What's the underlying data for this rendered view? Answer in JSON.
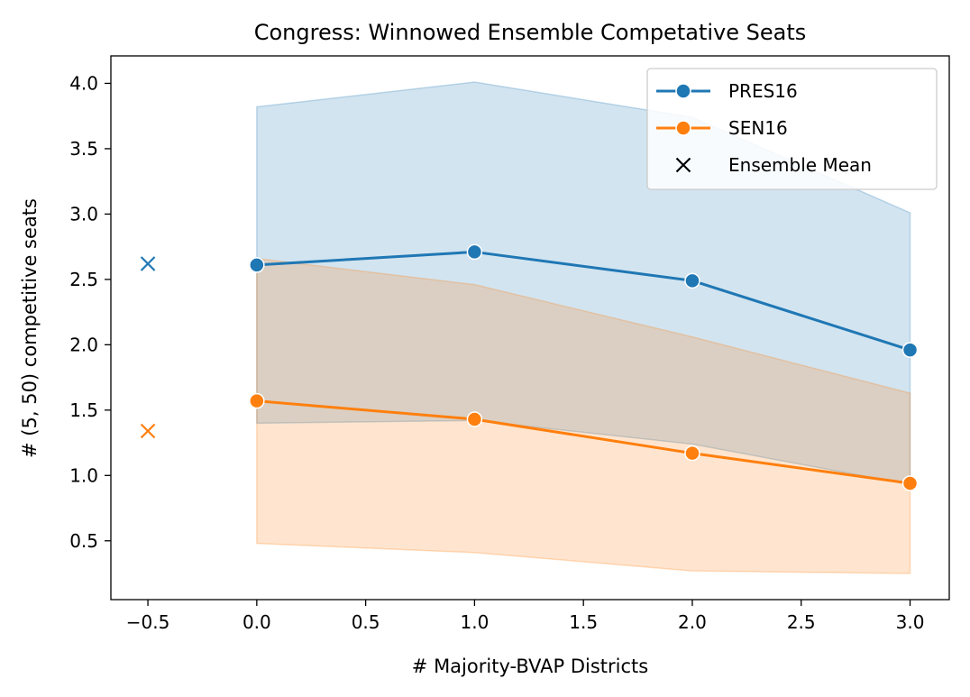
{
  "chart_data": {
    "type": "line",
    "title": "Congress: Winnowed Ensemble Competative Seats",
    "xlabel": "# Majority-BVAP Districts",
    "ylabel": "# (5, 50) competitive seats",
    "xlim": [
      -0.67,
      3.18
    ],
    "ylim": [
      0.05,
      4.21
    ],
    "xticks": [
      -0.5,
      0.0,
      0.5,
      1.0,
      1.5,
      2.0,
      2.5,
      3.0
    ],
    "xtick_labels": [
      "−0.5",
      "0.0",
      "0.5",
      "1.0",
      "1.5",
      "2.0",
      "2.5",
      "3.0"
    ],
    "yticks": [
      0.5,
      1.0,
      1.5,
      2.0,
      2.5,
      3.0,
      3.5,
      4.0
    ],
    "ytick_labels": [
      "0.5",
      "1.0",
      "1.5",
      "2.0",
      "2.5",
      "3.0",
      "3.5",
      "4.0"
    ],
    "grid": false,
    "legend_position": "top-right",
    "series": [
      {
        "name": "PRES16",
        "color": "#1f77b4",
        "x": [
          0,
          1,
          2,
          3
        ],
        "values": [
          2.61,
          2.71,
          2.49,
          1.96
        ],
        "band_upper": [
          3.82,
          4.01,
          3.74,
          3.01
        ],
        "band_lower": [
          1.4,
          1.42,
          1.24,
          0.93
        ],
        "ensemble_mean": {
          "x": -0.5,
          "y": 2.62
        }
      },
      {
        "name": "SEN16",
        "color": "#ff7f0e",
        "x": [
          0,
          1,
          2,
          3
        ],
        "values": [
          1.57,
          1.43,
          1.17,
          0.94
        ],
        "band_upper": [
          2.66,
          2.46,
          2.06,
          1.63
        ],
        "band_lower": [
          0.48,
          0.41,
          0.27,
          0.25
        ],
        "ensemble_mean": {
          "x": -0.5,
          "y": 1.34
        }
      }
    ],
    "legend": [
      {
        "label": "PRES16",
        "marker": "line-circle",
        "color": "#1f77b4"
      },
      {
        "label": "SEN16",
        "marker": "line-circle",
        "color": "#ff7f0e"
      },
      {
        "label": "Ensemble Mean",
        "marker": "x",
        "color": "#000000"
      }
    ]
  }
}
